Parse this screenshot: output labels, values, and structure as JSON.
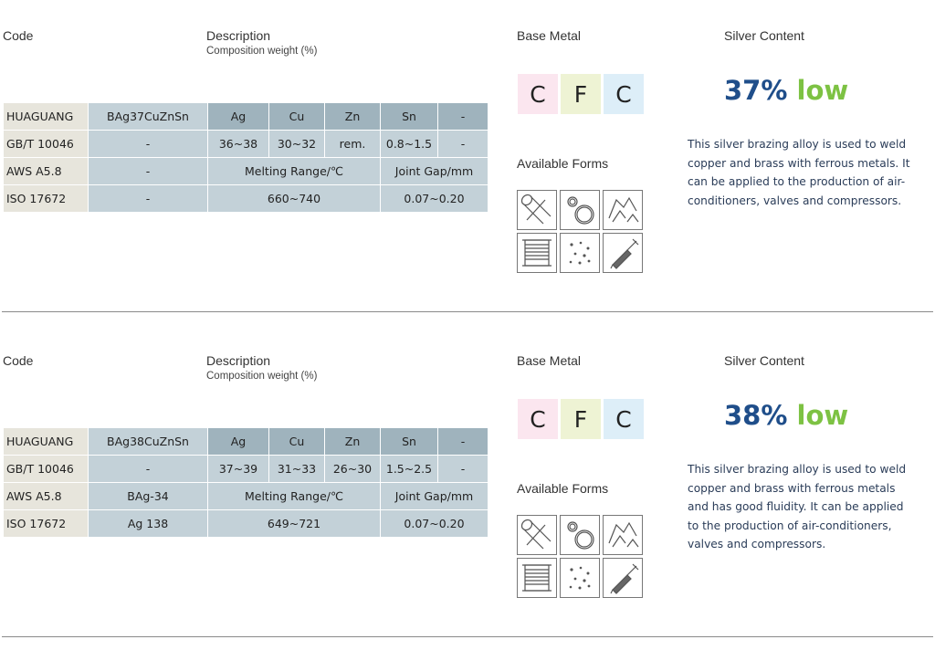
{
  "headers": {
    "code": "Code",
    "description": "Description",
    "composition": "Composition weight (%)",
    "base_metal": "Base Metal",
    "silver_content": "Silver Content",
    "available_forms": "Available Forms"
  },
  "colors": {
    "pink": "#fbe6ef",
    "green": "#eef3d4",
    "blue": "#ddeef8",
    "percent": "#1f4e8a",
    "low": "#7dc243"
  },
  "form_icons": [
    "rod-icon",
    "ring-icon",
    "flux-icon",
    "coil-icon",
    "powder-icon",
    "paste-syringe-icon"
  ],
  "products": [
    {
      "table": {
        "standards": [
          "HUAGUANG",
          "GB/T 10046",
          "AWS A5.8",
          "ISO 17672"
        ],
        "codes": [
          "BAg37CuZnSn",
          "-",
          "-",
          "-"
        ],
        "elements": [
          "Ag",
          "Cu",
          "Zn",
          "Sn",
          "-"
        ],
        "composition": [
          "36~38",
          "30~32",
          "rem.",
          "0.8~1.5",
          "-"
        ],
        "melting_label": "Melting Range/℃",
        "gap_label": "Joint Gap/mm",
        "melting_range": "660~740",
        "joint_gap": "0.07~0.20"
      },
      "base_metals": [
        "C",
        "F",
        "C"
      ],
      "silver": {
        "percent": "37%",
        "level": "low"
      },
      "description": "This silver brazing alloy is used to weld copper and brass with ferrous metals. It can be applied to the production of air-conditioners, valves and compressors."
    },
    {
      "table": {
        "standards": [
          "HUAGUANG",
          "GB/T 10046",
          "AWS A5.8",
          "ISO 17672"
        ],
        "codes": [
          "BAg38CuZnSn",
          "-",
          "BAg-34",
          "Ag 138"
        ],
        "elements": [
          "Ag",
          "Cu",
          "Zn",
          "Sn",
          "-"
        ],
        "composition": [
          "37~39",
          "31~33",
          "26~30",
          "1.5~2.5",
          "-"
        ],
        "melting_label": "Melting Range/℃",
        "gap_label": "Joint Gap/mm",
        "melting_range": "649~721",
        "joint_gap": "0.07~0.20"
      },
      "base_metals": [
        "C",
        "F",
        "C"
      ],
      "silver": {
        "percent": "38%",
        "level": "low"
      },
      "description": "This silver brazing alloy is used to weld copper and brass with ferrous metals and has good fluidity. It can be applied to the production of air-conditioners, valves and compressors."
    }
  ]
}
